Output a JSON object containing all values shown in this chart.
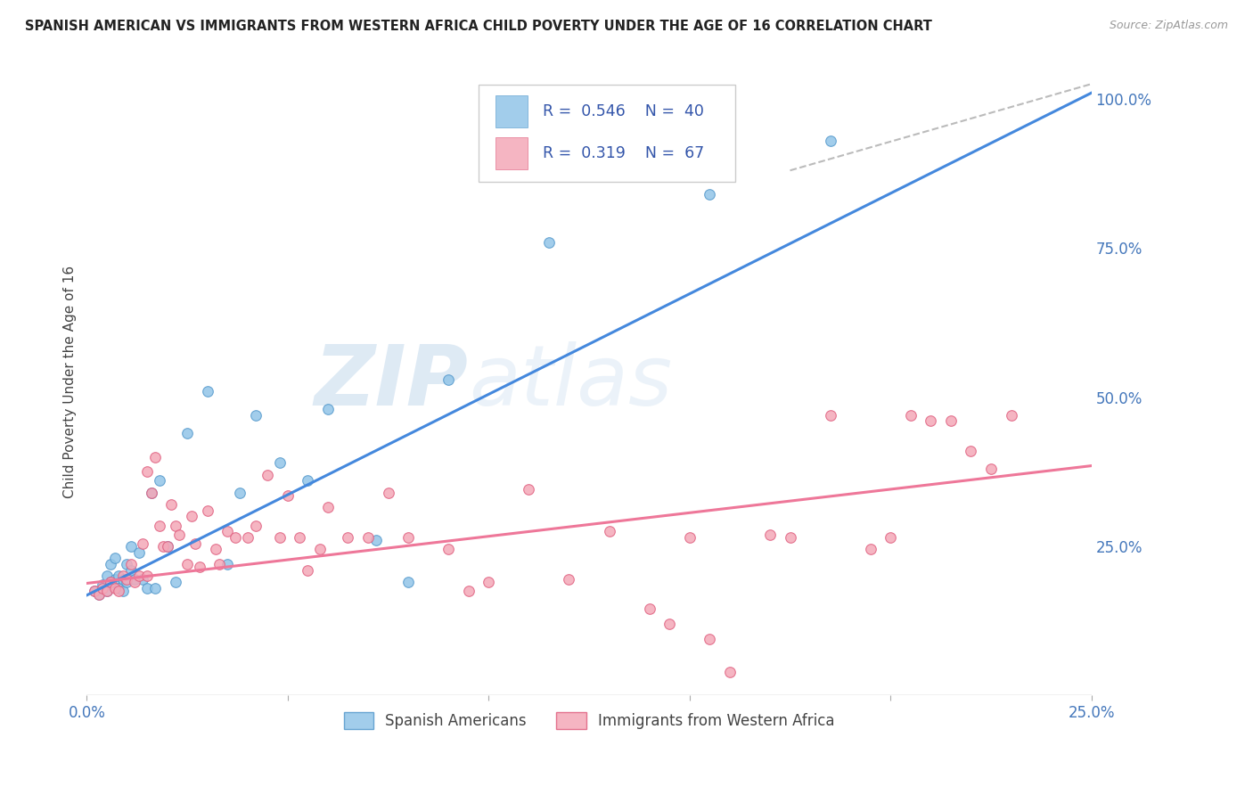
{
  "title": "SPANISH AMERICAN VS IMMIGRANTS FROM WESTERN AFRICA CHILD POVERTY UNDER THE AGE OF 16 CORRELATION CHART",
  "source": "Source: ZipAtlas.com",
  "ylabel": "Child Poverty Under the Age of 16",
  "xlim": [
    0.0,
    0.25
  ],
  "ylim": [
    0.0,
    1.05
  ],
  "xticks": [
    0.0,
    0.05,
    0.1,
    0.15,
    0.2,
    0.25
  ],
  "xtick_labels": [
    "0.0%",
    "",
    "",
    "",
    "",
    "25.0%"
  ],
  "ytick_labels_right": [
    "25.0%",
    "50.0%",
    "75.0%",
    "100.0%"
  ],
  "yticks_right": [
    0.25,
    0.5,
    0.75,
    1.0
  ],
  "watermark_zip": "ZIP",
  "watermark_atlas": "atlas",
  "blue_color": "#92C5E8",
  "blue_edge_color": "#5599CC",
  "pink_color": "#F4A8B8",
  "pink_edge_color": "#E06080",
  "blue_line_color": "#4488DD",
  "pink_line_color": "#EE7799",
  "dashed_line_color": "#BBBBBB",
  "title_color": "#222222",
  "axis_label_color": "#444444",
  "tick_color": "#4477BB",
  "grid_color": "#DDDDDD",
  "blue_scatter_x": [
    0.002,
    0.003,
    0.004,
    0.005,
    0.005,
    0.006,
    0.006,
    0.007,
    0.007,
    0.008,
    0.008,
    0.009,
    0.009,
    0.01,
    0.01,
    0.011,
    0.011,
    0.012,
    0.013,
    0.014,
    0.015,
    0.016,
    0.017,
    0.018,
    0.02,
    0.022,
    0.025,
    0.03,
    0.035,
    0.038,
    0.042,
    0.048,
    0.055,
    0.06,
    0.072,
    0.08,
    0.09,
    0.115,
    0.155,
    0.185
  ],
  "blue_scatter_y": [
    0.175,
    0.17,
    0.185,
    0.2,
    0.175,
    0.19,
    0.22,
    0.195,
    0.23,
    0.18,
    0.2,
    0.175,
    0.195,
    0.19,
    0.22,
    0.25,
    0.21,
    0.195,
    0.24,
    0.195,
    0.18,
    0.34,
    0.18,
    0.36,
    0.25,
    0.19,
    0.44,
    0.51,
    0.22,
    0.34,
    0.47,
    0.39,
    0.36,
    0.48,
    0.26,
    0.19,
    0.53,
    0.76,
    0.84,
    0.93
  ],
  "pink_scatter_x": [
    0.002,
    0.003,
    0.004,
    0.005,
    0.006,
    0.007,
    0.008,
    0.009,
    0.01,
    0.011,
    0.012,
    0.013,
    0.014,
    0.015,
    0.015,
    0.016,
    0.017,
    0.018,
    0.019,
    0.02,
    0.021,
    0.022,
    0.023,
    0.025,
    0.026,
    0.027,
    0.028,
    0.03,
    0.032,
    0.033,
    0.035,
    0.037,
    0.04,
    0.042,
    0.045,
    0.048,
    0.05,
    0.053,
    0.055,
    0.058,
    0.06,
    0.065,
    0.07,
    0.075,
    0.08,
    0.09,
    0.095,
    0.1,
    0.11,
    0.12,
    0.13,
    0.14,
    0.145,
    0.15,
    0.155,
    0.16,
    0.17,
    0.175,
    0.185,
    0.195,
    0.2,
    0.205,
    0.21,
    0.215,
    0.22,
    0.225,
    0.23
  ],
  "pink_scatter_y": [
    0.175,
    0.17,
    0.18,
    0.175,
    0.19,
    0.18,
    0.175,
    0.2,
    0.195,
    0.22,
    0.19,
    0.2,
    0.255,
    0.2,
    0.375,
    0.34,
    0.4,
    0.285,
    0.25,
    0.25,
    0.32,
    0.285,
    0.27,
    0.22,
    0.3,
    0.255,
    0.215,
    0.31,
    0.245,
    0.22,
    0.275,
    0.265,
    0.265,
    0.285,
    0.37,
    0.265,
    0.335,
    0.265,
    0.21,
    0.245,
    0.315,
    0.265,
    0.265,
    0.34,
    0.265,
    0.245,
    0.175,
    0.19,
    0.345,
    0.195,
    0.275,
    0.145,
    0.12,
    0.265,
    0.095,
    0.04,
    0.27,
    0.265,
    0.47,
    0.245,
    0.265,
    0.47,
    0.46,
    0.46,
    0.41,
    0.38,
    0.47
  ],
  "blue_trend_x": [
    0.0,
    0.25
  ],
  "blue_trend_y": [
    0.168,
    1.01
  ],
  "pink_trend_x": [
    0.0,
    0.25
  ],
  "pink_trend_y": [
    0.188,
    0.385
  ],
  "dashed_trend_x": [
    0.175,
    0.25
  ],
  "dashed_trend_y": [
    0.88,
    1.025
  ]
}
